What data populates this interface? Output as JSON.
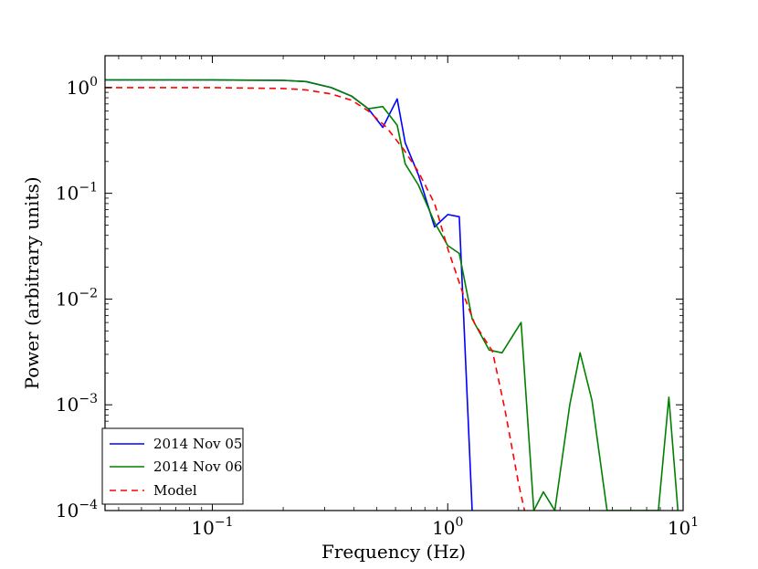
{
  "chart_data": {
    "type": "line",
    "title": "",
    "xlabel": "Frequency (Hz)",
    "ylabel": "Power (arbitrary units)",
    "xscale": "log",
    "yscale": "log",
    "xlim": [
      0.035,
      10
    ],
    "ylim": [
      0.0001,
      2
    ],
    "grid": false,
    "legend_position": "lower-left",
    "x_ticks": [
      {
        "value": 0.1,
        "base": "10",
        "exp": "−1"
      },
      {
        "value": 1,
        "base": "10",
        "exp": "0"
      },
      {
        "value": 10,
        "base": "10",
        "exp": "1"
      }
    ],
    "y_ticks": [
      {
        "value": 1,
        "base": "10",
        "exp": "0"
      },
      {
        "value": 0.1,
        "base": "10",
        "exp": "−1"
      },
      {
        "value": 0.01,
        "base": "10",
        "exp": "−2"
      },
      {
        "value": 0.001,
        "base": "10",
        "exp": "−3"
      },
      {
        "value": 0.0001,
        "base": "10",
        "exp": "−4"
      }
    ],
    "series": [
      {
        "name": "2014 Nov 05",
        "color": "#0000ff",
        "dash": "solid",
        "x": [
          0.035,
          0.1,
          0.2,
          0.25,
          0.32,
          0.39,
          0.46,
          0.53,
          0.61,
          0.66,
          0.75,
          0.88,
          1.0,
          1.12,
          1.27
        ],
        "y": [
          1.18,
          1.18,
          1.17,
          1.14,
          1.0,
          0.83,
          0.63,
          0.42,
          0.78,
          0.3,
          0.15,
          0.048,
          0.063,
          0.06,
          0.0001
        ]
      },
      {
        "name": "2014 Nov 06",
        "color": "#008000",
        "dash": "solid",
        "x": [
          0.035,
          0.1,
          0.2,
          0.25,
          0.32,
          0.39,
          0.46,
          0.53,
          0.61,
          0.66,
          0.75,
          0.88,
          1.0,
          1.12,
          1.27,
          1.5,
          1.7,
          2.05,
          2.32,
          2.55,
          2.85,
          3.3,
          3.65,
          4.1,
          4.75,
          6.4,
          7.2,
          7.85,
          8.7,
          9.5
        ],
        "y": [
          1.18,
          1.18,
          1.17,
          1.14,
          1.0,
          0.83,
          0.63,
          0.66,
          0.44,
          0.19,
          0.12,
          0.053,
          0.032,
          0.027,
          0.0065,
          0.0033,
          0.0031,
          0.006,
          0.0001,
          0.00015,
          0.0001,
          0.001,
          0.0031,
          0.0011,
          0.0001,
          0.0001,
          0.0001,
          0.0001,
          0.00118,
          0.0001
        ]
      },
      {
        "name": "Model",
        "color": "#ff0000",
        "dash": "dashed",
        "x": [
          0.035,
          0.1,
          0.2,
          0.25,
          0.32,
          0.39,
          0.46,
          0.55,
          0.65,
          0.75,
          0.88,
          1.0,
          1.15,
          1.3,
          1.55,
          1.75,
          2.0,
          2.12
        ],
        "y": [
          1.0,
          1.0,
          0.98,
          0.95,
          0.87,
          0.76,
          0.6,
          0.42,
          0.26,
          0.16,
          0.08,
          0.03,
          0.012,
          0.0059,
          0.0032,
          0.0009,
          0.00018,
          0.0001
        ]
      }
    ]
  }
}
